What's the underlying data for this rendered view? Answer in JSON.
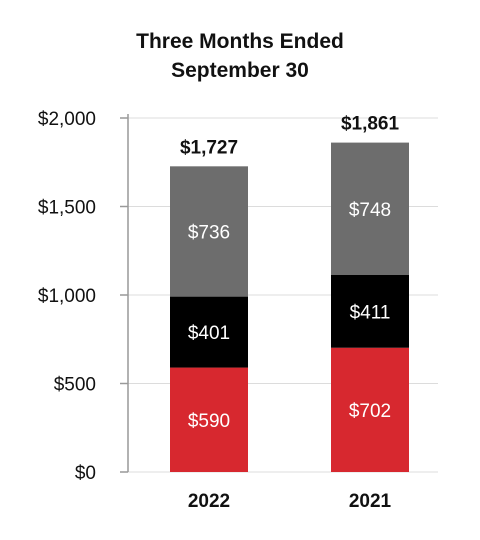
{
  "chart_data": {
    "type": "bar",
    "stacked": true,
    "title": "Three Months Ended",
    "subtitle": "September 30",
    "categories": [
      "2022",
      "2021"
    ],
    "series": [
      {
        "values": [
          590,
          702
        ],
        "labels": [
          "$590",
          "$702"
        ],
        "color": "#d7282f"
      },
      {
        "values": [
          401,
          411
        ],
        "labels": [
          "$401",
          "$411"
        ],
        "color": "#000000"
      },
      {
        "values": [
          736,
          748
        ],
        "labels": [
          "$736",
          "$748"
        ],
        "color": "#6d6d6d"
      }
    ],
    "totals": [
      "$1,727",
      "$1,861"
    ],
    "yticks": [
      "$0",
      "$500",
      "$1,000",
      "$1,500",
      "$2,000"
    ],
    "ytick_values": [
      0,
      500,
      1000,
      1500,
      2000
    ],
    "ylim": [
      0,
      2000
    ],
    "grid": true,
    "legend": "none"
  }
}
